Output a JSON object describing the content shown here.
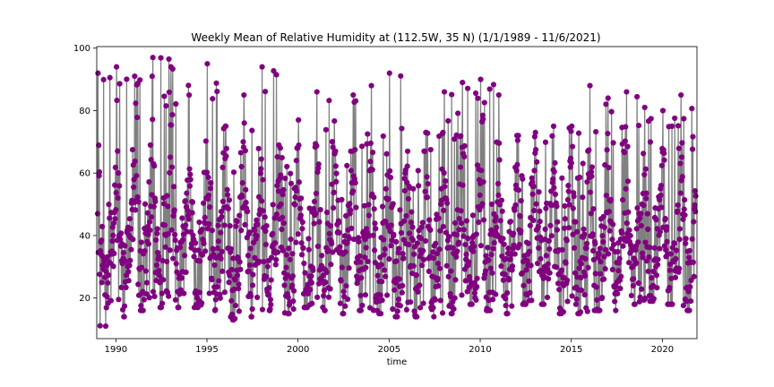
{
  "chart_data": {
    "type": "line",
    "title": "Weekly Mean of Relative Humidity at (112.5W, 35 N) (1/1/1989 - 11/6/2021)",
    "xlabel": "time",
    "ylabel": "",
    "x_start": "1989-01-01",
    "x_end": "2021-11-06",
    "step_days": 7,
    "xlim": [
      1988.95,
      2021.9
    ],
    "ylim": [
      7,
      100.5
    ],
    "xticks": [
      1990,
      1995,
      2000,
      2005,
      2010,
      2015,
      2020
    ],
    "yticks": [
      20,
      40,
      60,
      80,
      100
    ],
    "grid": false,
    "legend": "none",
    "line_color": "#808080",
    "marker_color": "#800080",
    "series": [
      {
        "annual_peaks": [
          {
            "year": 1989,
            "peak": 92,
            "trough": 11
          },
          {
            "year": 1990,
            "peak": 94,
            "trough": 14
          },
          {
            "year": 1991,
            "peak": 91,
            "trough": 16
          },
          {
            "year": 1992,
            "peak": 97,
            "trough": 17
          },
          {
            "year": 1993,
            "peak": 94,
            "trough": 17
          },
          {
            "year": 1994,
            "peak": 85,
            "trough": 17
          },
          {
            "year": 1995,
            "peak": 95,
            "trough": 16
          },
          {
            "year": 1996,
            "peak": 75,
            "trough": 13
          },
          {
            "year": 1997,
            "peak": 85,
            "trough": 14
          },
          {
            "year": 1998,
            "peak": 94,
            "trough": 16
          },
          {
            "year": 1999,
            "peak": 68,
            "trough": 15
          },
          {
            "year": 2000,
            "peak": 77,
            "trough": 17
          },
          {
            "year": 2001,
            "peak": 86,
            "trough": 16
          },
          {
            "year": 2002,
            "peak": 67,
            "trough": 15
          },
          {
            "year": 2003,
            "peak": 85,
            "trough": 16
          },
          {
            "year": 2004,
            "peak": 88,
            "trough": 15
          },
          {
            "year": 2005,
            "peak": 92,
            "trough": 14
          },
          {
            "year": 2006,
            "peak": 67,
            "trough": 14
          },
          {
            "year": 2007,
            "peak": 73,
            "trough": 14
          },
          {
            "year": 2008,
            "peak": 86,
            "trough": 15
          },
          {
            "year": 2009,
            "peak": 89,
            "trough": 18
          },
          {
            "year": 2010,
            "peak": 90,
            "trough": 16
          },
          {
            "year": 2011,
            "peak": 85,
            "trough": 15
          },
          {
            "year": 2012,
            "peak": 72,
            "trough": 18
          },
          {
            "year": 2013,
            "peak": 73,
            "trough": 18
          },
          {
            "year": 2014,
            "peak": 75,
            "trough": 15
          },
          {
            "year": 2015,
            "peak": 75,
            "trough": 15
          },
          {
            "year": 2016,
            "peak": 88,
            "trough": 16
          },
          {
            "year": 2017,
            "peak": 84,
            "trough": 16
          },
          {
            "year": 2018,
            "peak": 86,
            "trough": 18
          },
          {
            "year": 2019,
            "peak": 81,
            "trough": 19
          },
          {
            "year": 2020,
            "peak": 80,
            "trough": 18
          },
          {
            "year": 2021,
            "peak": 85,
            "trough": 16
          }
        ]
      }
    ]
  }
}
